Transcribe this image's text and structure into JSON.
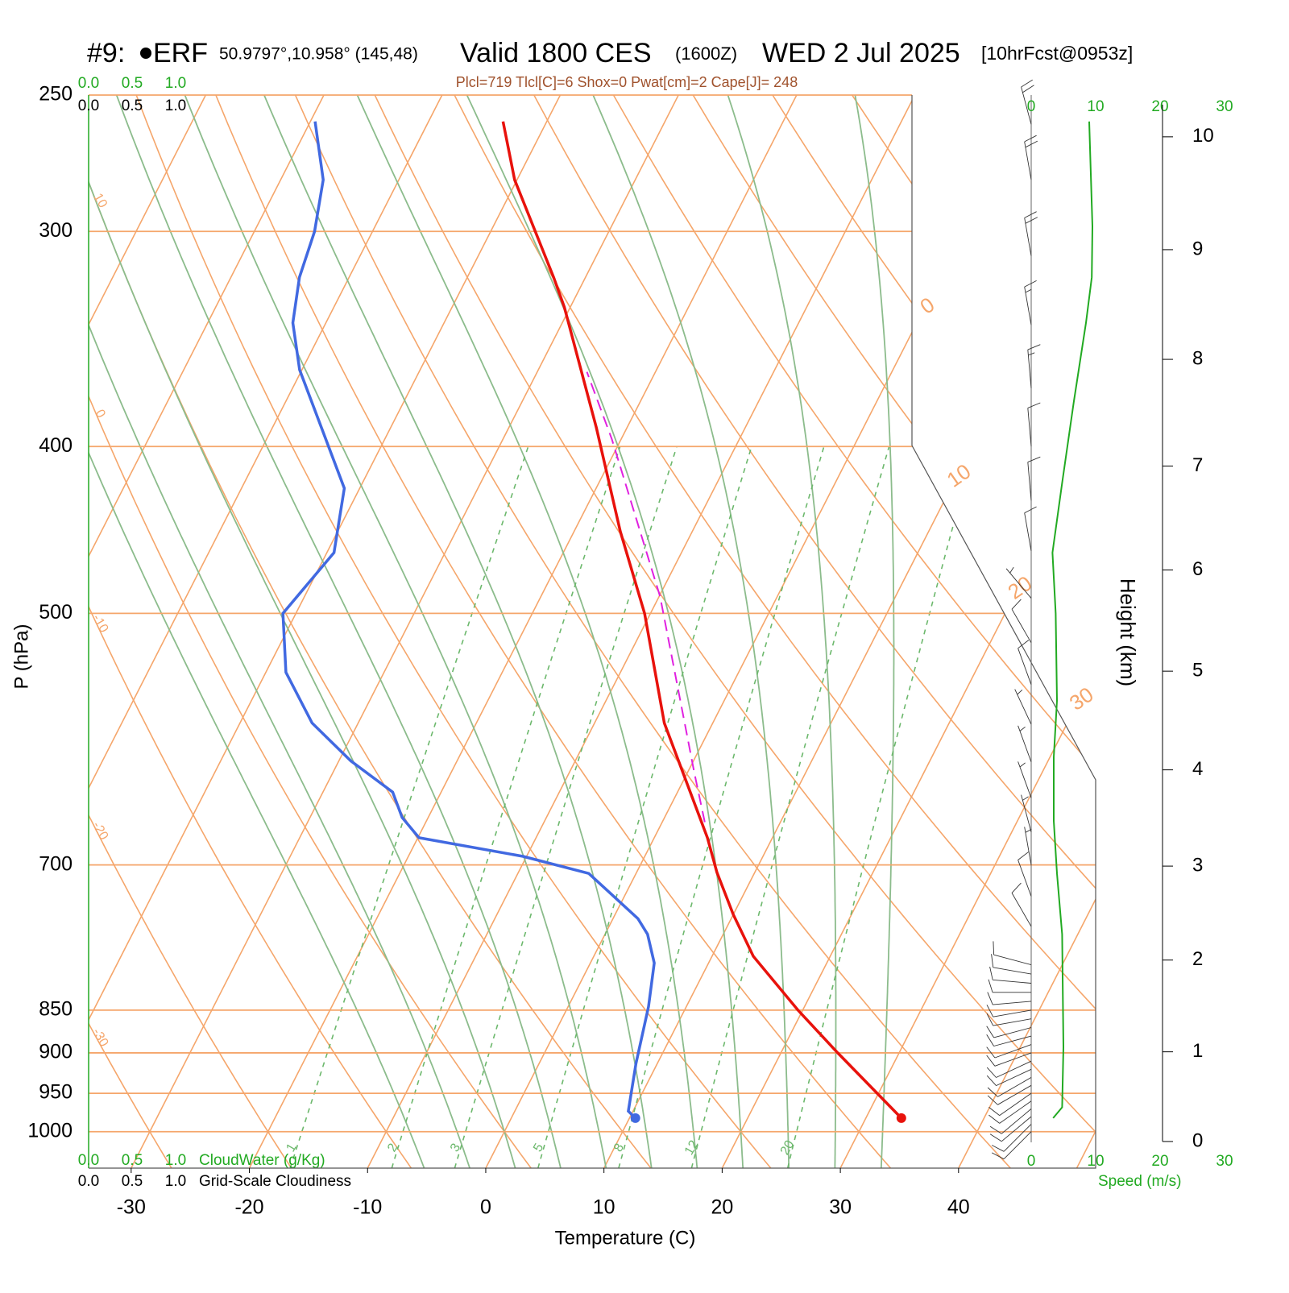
{
  "chart_data": {
    "type": "skewt",
    "station_number": "#9:",
    "station": "ERF",
    "location": "50.9797°,10.958° (145,48)",
    "valid": "Valid 1800 CES",
    "utc": "(1600Z)",
    "date": "WED 2 Jul 2025",
    "forecast": "[10hrFcst@0953z]",
    "subtitle": "Plcl=719 Tlcl[C]=6 Shox=0 Pwat[cm]=2 Cape[J]= 248",
    "xlabel": "Temperature (C)",
    "ylabel": "P (hPa)",
    "y2label": "Height (km)",
    "xlim": [
      -33.6,
      51.6
    ],
    "ylim": [
      1050,
      250
    ],
    "xticks": [
      -30,
      -20,
      -10,
      0,
      10,
      20,
      30,
      40
    ],
    "yticks": [
      250,
      300,
      400,
      500,
      700,
      850,
      900,
      950,
      1000
    ],
    "height_ticks": [
      0,
      1,
      2,
      3,
      4,
      5,
      6,
      7,
      8,
      9,
      10
    ],
    "temperature": {
      "color": "#e8120c",
      "pressure": [
        982,
        900,
        850,
        791,
        748,
        707,
        675,
        579,
        500,
        448,
        390,
        332,
        319,
        280,
        259
      ],
      "values": [
        33,
        24.8,
        19.6,
        13.5,
        10,
        6.8,
        4.5,
        -4.1,
        -10.5,
        -16.1,
        -22.6,
        -30.5,
        -32.7,
        -40.2,
        -43.7
      ]
    },
    "dewpoint": {
      "color": "#4169e1",
      "pressure": [
        982,
        973,
        913,
        846,
        798,
        768,
        752,
        708,
        692,
        675,
        657,
        635,
        609,
        579,
        541,
        500,
        461,
        423,
        361,
        339,
        319,
        300,
        280,
        259
      ],
      "values": [
        10.5,
        9.6,
        8.2,
        6.8,
        5.4,
        3.6,
        2.1,
        -4,
        -10.3,
        -19.9,
        -22.2,
        -24.1,
        -29,
        -33.9,
        -38.3,
        -41.1,
        -39.4,
        -41.3,
        -50.2,
        -52.8,
        -54.2,
        -54.9,
        -56.4,
        -59.6
      ]
    },
    "parcel": {
      "color": "#e020e0",
      "pressure": [
        661,
        619,
        489,
        396,
        362
      ],
      "values": [
        3.6,
        0.6,
        -9.9,
        -20.8,
        -25.8
      ]
    },
    "wind_speed": {
      "color": "#22aa22",
      "label": "Speed (m/s)",
      "xlim": [
        0,
        30
      ],
      "xticks": [
        0,
        10,
        20,
        30
      ],
      "pressure": [
        982,
        968,
        893,
        768,
        708,
        660,
        606,
        562,
        500,
        461,
        420,
        377,
        339,
        319,
        298,
        259
      ],
      "values": [
        3.4,
        4.8,
        5,
        4.8,
        4,
        3.5,
        3.5,
        4,
        3.8,
        3.3,
        4.8,
        6.6,
        8.5,
        9.4,
        9.5,
        9
      ]
    },
    "wind_barbs": {
      "pressure": [
        1000,
        990,
        980,
        970,
        960,
        950,
        940,
        930,
        920,
        910,
        900,
        890,
        880,
        870,
        860,
        850,
        840,
        830,
        820,
        810,
        800,
        760,
        730,
        700,
        670,
        640,
        610,
        580,
        550,
        520,
        490,
        460,
        430,
        400,
        370,
        340,
        310,
        280,
        260
      ],
      "direction": [
        225,
        225,
        230,
        230,
        235,
        235,
        240,
        240,
        245,
        245,
        250,
        250,
        255,
        255,
        260,
        260,
        265,
        270,
        275,
        280,
        285,
        330,
        340,
        350,
        345,
        340,
        340,
        335,
        340,
        330,
        320,
        350,
        355,
        355,
        355,
        350,
        350,
        350,
        345
      ],
      "speed": [
        10,
        10,
        10,
        10,
        10,
        10,
        10,
        10,
        10,
        10,
        10,
        10,
        10,
        10,
        10,
        10,
        10,
        10,
        10,
        10,
        10,
        10,
        10,
        5,
        5,
        5,
        5,
        5,
        10,
        10,
        5,
        10,
        10,
        10,
        15,
        15,
        20,
        20,
        20
      ]
    },
    "isotherms": [
      -80,
      -70,
      -60,
      -50,
      -40,
      -30,
      -20,
      -10,
      0,
      10,
      20,
      30,
      40,
      50
    ],
    "isotherm_labels": [
      0,
      10,
      20,
      30
    ],
    "dry_adiabats": [
      -40,
      -30,
      -20,
      -10,
      0,
      10,
      20,
      30,
      40,
      50,
      60,
      70,
      80,
      90,
      100,
      110,
      120
    ],
    "moist_adiabats": [
      -8,
      -4,
      0,
      4,
      8,
      12,
      16,
      20,
      24,
      28,
      32
    ],
    "mixing_ratio": [
      1,
      2,
      3,
      5,
      8,
      12,
      20
    ],
    "cloud_water": {
      "label": "CloudWater (g/Kg)",
      "ticks": [
        {
          "value": 0,
          "label": "0.0"
        },
        0.5,
        {
          "value": 1,
          "label": "1.0"
        }
      ]
    },
    "cloudiness": {
      "label": "Grid-Scale Cloudiness",
      "ticks": [
        {
          "value": 0,
          "label": "0.0"
        },
        0.5,
        {
          "value": 1,
          "label": "1.0"
        }
      ]
    }
  }
}
